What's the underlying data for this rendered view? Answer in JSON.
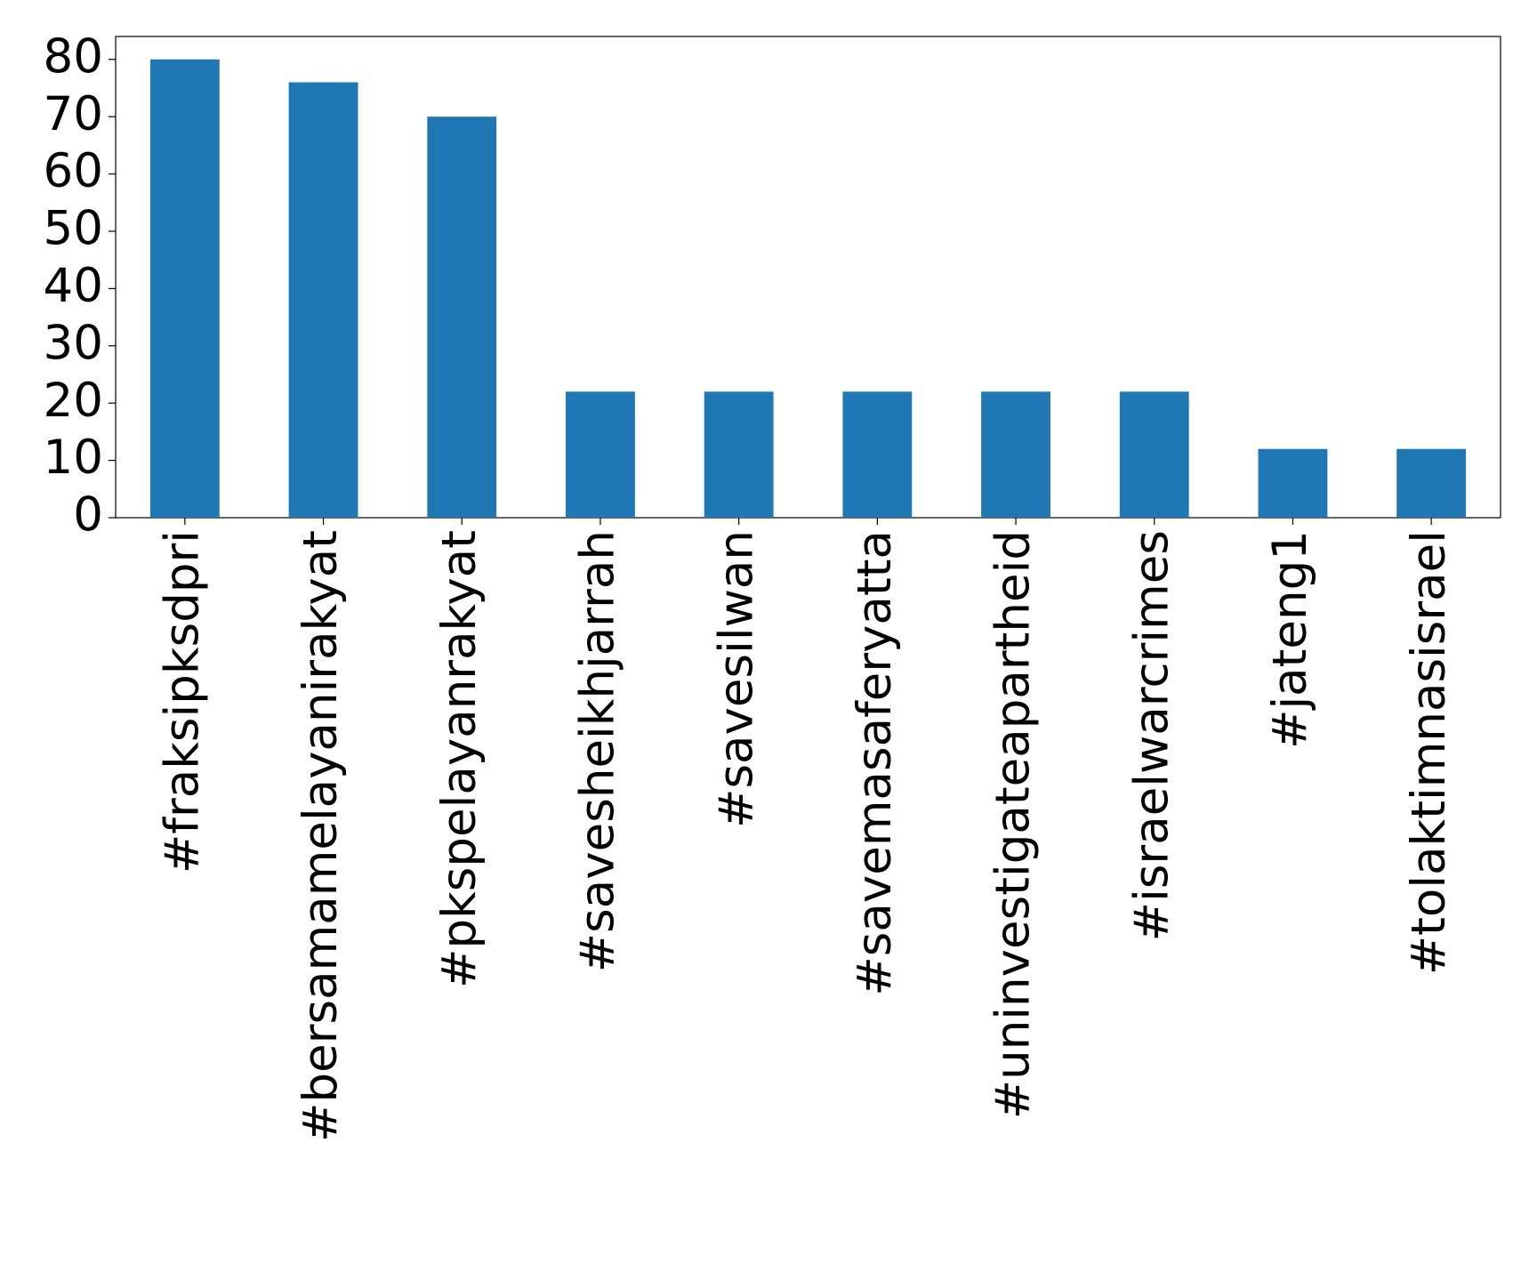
{
  "chart_data": {
    "type": "bar",
    "categories": [
      "#fraksipksdpri",
      "#bersamamelayanirakyat",
      "#pkspelayanrakyat",
      "#savesheikhjarrah",
      "#savesilwan",
      "#savemasaferyatta",
      "#uninvestigateapartheid",
      "#israelwarcrimes",
      "#jateng1",
      "#tolaktimnasisrael"
    ],
    "values": [
      80,
      76,
      70,
      22,
      22,
      22,
      22,
      22,
      12,
      12
    ],
    "color": "#1f77b4",
    "ylim": [
      0,
      84
    ],
    "yticks": [
      0,
      10,
      20,
      30,
      40,
      50,
      60,
      70,
      80
    ],
    "grid": false
  }
}
